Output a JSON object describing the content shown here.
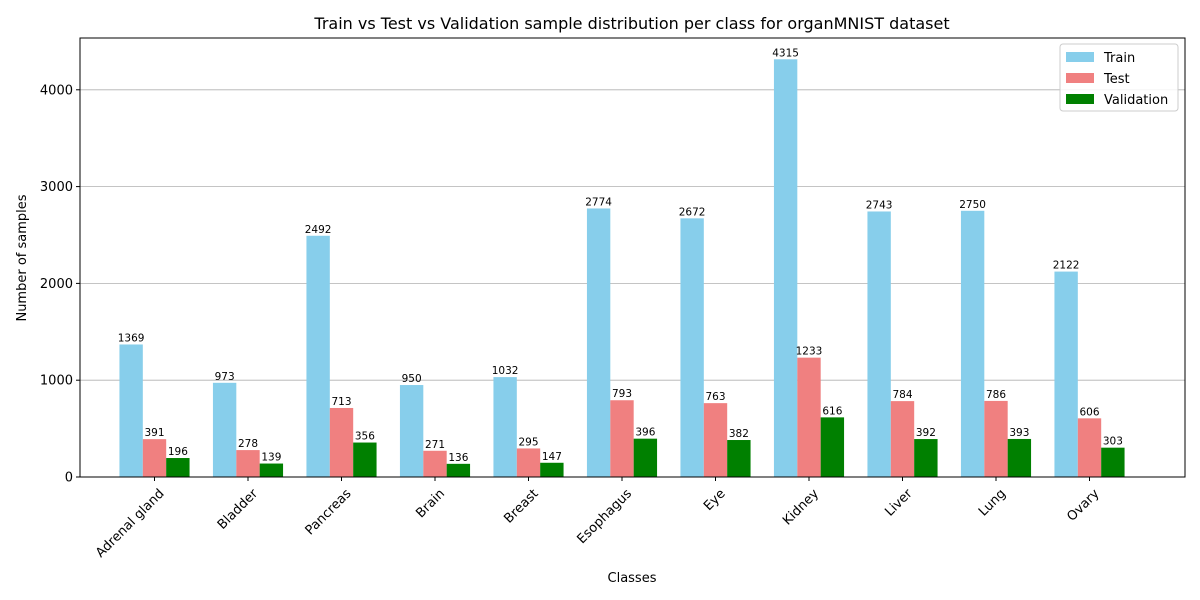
{
  "chart_data": {
    "type": "bar",
    "title": "Train vs Test vs Validation sample distribution per class for organMNIST dataset",
    "xlabel": "Classes",
    "ylabel": "Number of samples",
    "ylim": [
      0,
      4535
    ],
    "yticks": [
      0,
      1000,
      2000,
      3000,
      4000
    ],
    "grid": "y",
    "legend_position": "top-right",
    "categories": [
      "Adrenal gland",
      "Bladder",
      "Pancreas",
      "Brain",
      "Breast",
      "Esophagus",
      "Eye",
      "Kidney",
      "Liver",
      "Lung",
      "Ovary"
    ],
    "series": [
      {
        "name": "Train",
        "color": "#87ceeb",
        "values": [
          1369,
          973,
          2492,
          950,
          1032,
          2774,
          2672,
          4315,
          2743,
          2750,
          2122
        ]
      },
      {
        "name": "Test",
        "color": "#f08080",
        "values": [
          391,
          278,
          713,
          271,
          295,
          793,
          763,
          1233,
          784,
          786,
          606
        ]
      },
      {
        "name": "Validation",
        "color": "#008000",
        "values": [
          196,
          139,
          356,
          136,
          147,
          396,
          382,
          616,
          392,
          393,
          303
        ]
      }
    ]
  }
}
